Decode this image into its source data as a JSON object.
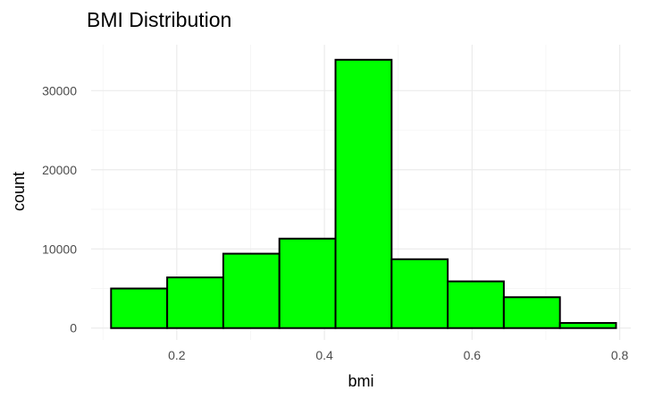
{
  "chart_data": {
    "type": "bar",
    "title": "BMI Distribution",
    "xlabel": "bmi",
    "ylabel": "count",
    "xlim": [
      0.084,
      0.815
    ],
    "ylim": [
      -1500,
      35800
    ],
    "xticks": [
      0.2,
      0.4,
      0.6,
      0.8
    ],
    "xtick_labels": [
      "0.2",
      "0.4",
      "0.6",
      "0.8"
    ],
    "yticks": [
      0,
      10000,
      20000,
      30000
    ],
    "ytick_labels": [
      "0",
      "10000",
      "20000",
      "30000"
    ],
    "grid": true,
    "bar_color": "#00ff00",
    "bar_outline": "#000000",
    "bins": [
      {
        "x0": 0.111,
        "x1": 0.187,
        "count": 5000
      },
      {
        "x0": 0.187,
        "x1": 0.263,
        "count": 6400
      },
      {
        "x0": 0.263,
        "x1": 0.339,
        "count": 9400
      },
      {
        "x0": 0.339,
        "x1": 0.415,
        "count": 11300
      },
      {
        "x0": 0.415,
        "x1": 0.491,
        "count": 33900
      },
      {
        "x0": 0.491,
        "x1": 0.567,
        "count": 8700
      },
      {
        "x0": 0.567,
        "x1": 0.643,
        "count": 5900
      },
      {
        "x0": 0.643,
        "x1": 0.719,
        "count": 3900
      },
      {
        "x0": 0.719,
        "x1": 0.795,
        "count": 650
      }
    ]
  }
}
